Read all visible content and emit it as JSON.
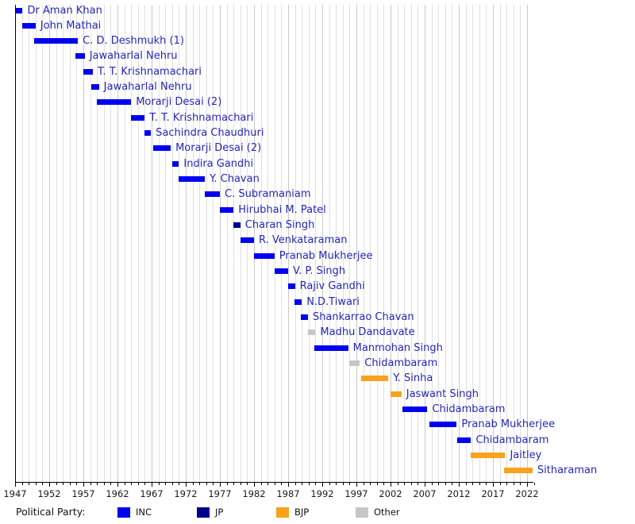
{
  "chart_data": {
    "type": "timeline",
    "title": "",
    "legend_title": "Political Party:",
    "label_color": "#2626BD",
    "gridline_minor_color": "#E0E0E0",
    "gridline_major_color": "#C9C9C9",
    "axis": {
      "start_year": 1947,
      "end_year": 2022,
      "major_tick_step": 5,
      "minor_tick_step": 1,
      "tick_labels": [
        "1947",
        "1952",
        "1957",
        "1962",
        "1967",
        "1972",
        "1977",
        "1982",
        "1987",
        "1992",
        "1997",
        "2002",
        "2007",
        "2012",
        "2017",
        "2022"
      ]
    },
    "parties": [
      {
        "name": "INC",
        "color": "#0000F0"
      },
      {
        "name": "JP",
        "color": "#00008B"
      },
      {
        "name": "BJP",
        "color": "#F9A21B"
      },
      {
        "name": "Other",
        "color": "#C6C6C6"
      }
    ],
    "ministers": [
      {
        "name": "Dr Aman Khan",
        "party": "INC",
        "start": 1947.1,
        "end": 1948.1
      },
      {
        "name": "John Mathai",
        "party": "INC",
        "start": 1948.1,
        "end": 1950.0
      },
      {
        "name": "C. D. Deshmukh (1)",
        "party": "INC",
        "start": 1949.8,
        "end": 1956.2
      },
      {
        "name": "Jawaharlal Nehru",
        "party": "INC",
        "start": 1955.8,
        "end": 1957.2
      },
      {
        "name": "T. T. Krishnamachari",
        "party": "INC",
        "start": 1957.0,
        "end": 1958.4
      },
      {
        "name": "Jawaharlal Nehru",
        "party": "INC",
        "start": 1958.2,
        "end": 1959.3
      },
      {
        "name": "Morarji Desai (2)",
        "party": "INC",
        "start": 1959.0,
        "end": 1964.0
      },
      {
        "name": "T. T. Krishnamachari",
        "party": "INC",
        "start": 1964.0,
        "end": 1966.0
      },
      {
        "name": "Sachindra Chaudhuri",
        "party": "INC",
        "start": 1966.0,
        "end": 1966.9
      },
      {
        "name": "Morarji Desai (2)",
        "party": "INC",
        "start": 1967.2,
        "end": 1969.8
      },
      {
        "name": "Indira Gandhi",
        "party": "INC",
        "start": 1970.0,
        "end": 1971.0
      },
      {
        "name": "Y. Chavan",
        "party": "INC",
        "start": 1971.0,
        "end": 1974.8
      },
      {
        "name": "C. Subramaniam",
        "party": "INC",
        "start": 1974.8,
        "end": 1977.0
      },
      {
        "name": "Hirubhai M. Patel",
        "party": "INC",
        "start": 1977.0,
        "end": 1979.0
      },
      {
        "name": "Charan Singh",
        "party": "JP",
        "start": 1979.0,
        "end": 1980.0
      },
      {
        "name": "R. Venkataraman",
        "party": "INC",
        "start": 1980.0,
        "end": 1982.0
      },
      {
        "name": "Pranab Mukherjee",
        "party": "INC",
        "start": 1982.0,
        "end": 1985.0
      },
      {
        "name": "V. P. Singh",
        "party": "INC",
        "start": 1985.0,
        "end": 1987.0
      },
      {
        "name": "Rajiv Gandhi",
        "party": "INC",
        "start": 1987.0,
        "end": 1988.0
      },
      {
        "name": "N.D.Tiwari",
        "party": "INC",
        "start": 1987.9,
        "end": 1989.0
      },
      {
        "name": "Shankarrao Chavan",
        "party": "INC",
        "start": 1988.9,
        "end": 1989.9
      },
      {
        "name": "Madhu Dandavate",
        "party": "Other",
        "start": 1989.9,
        "end": 1991.0
      },
      {
        "name": "Manmohan Singh",
        "party": "INC",
        "start": 1990.8,
        "end": 1995.8
      },
      {
        "name": "Chidambaram",
        "party": "Other",
        "start": 1995.9,
        "end": 1997.5
      },
      {
        "name": "Y. Sinha",
        "party": "BJP",
        "start": 1997.7,
        "end": 2001.7
      },
      {
        "name": "Jaswant Singh",
        "party": "BJP",
        "start": 2002.0,
        "end": 2003.6
      },
      {
        "name": "Chidambaram",
        "party": "INC",
        "start": 2003.8,
        "end": 2007.4
      },
      {
        "name": "Pranab Mukherjee",
        "party": "INC",
        "start": 2007.7,
        "end": 2011.7
      },
      {
        "name": "Chidambaram",
        "party": "INC",
        "start": 2011.8,
        "end": 2013.8
      },
      {
        "name": "Jaitley",
        "party": "BJP",
        "start": 2013.8,
        "end": 2018.8
      },
      {
        "name": "Sitharaman",
        "party": "BJP",
        "start": 2018.6,
        "end": 2022.8
      }
    ]
  }
}
